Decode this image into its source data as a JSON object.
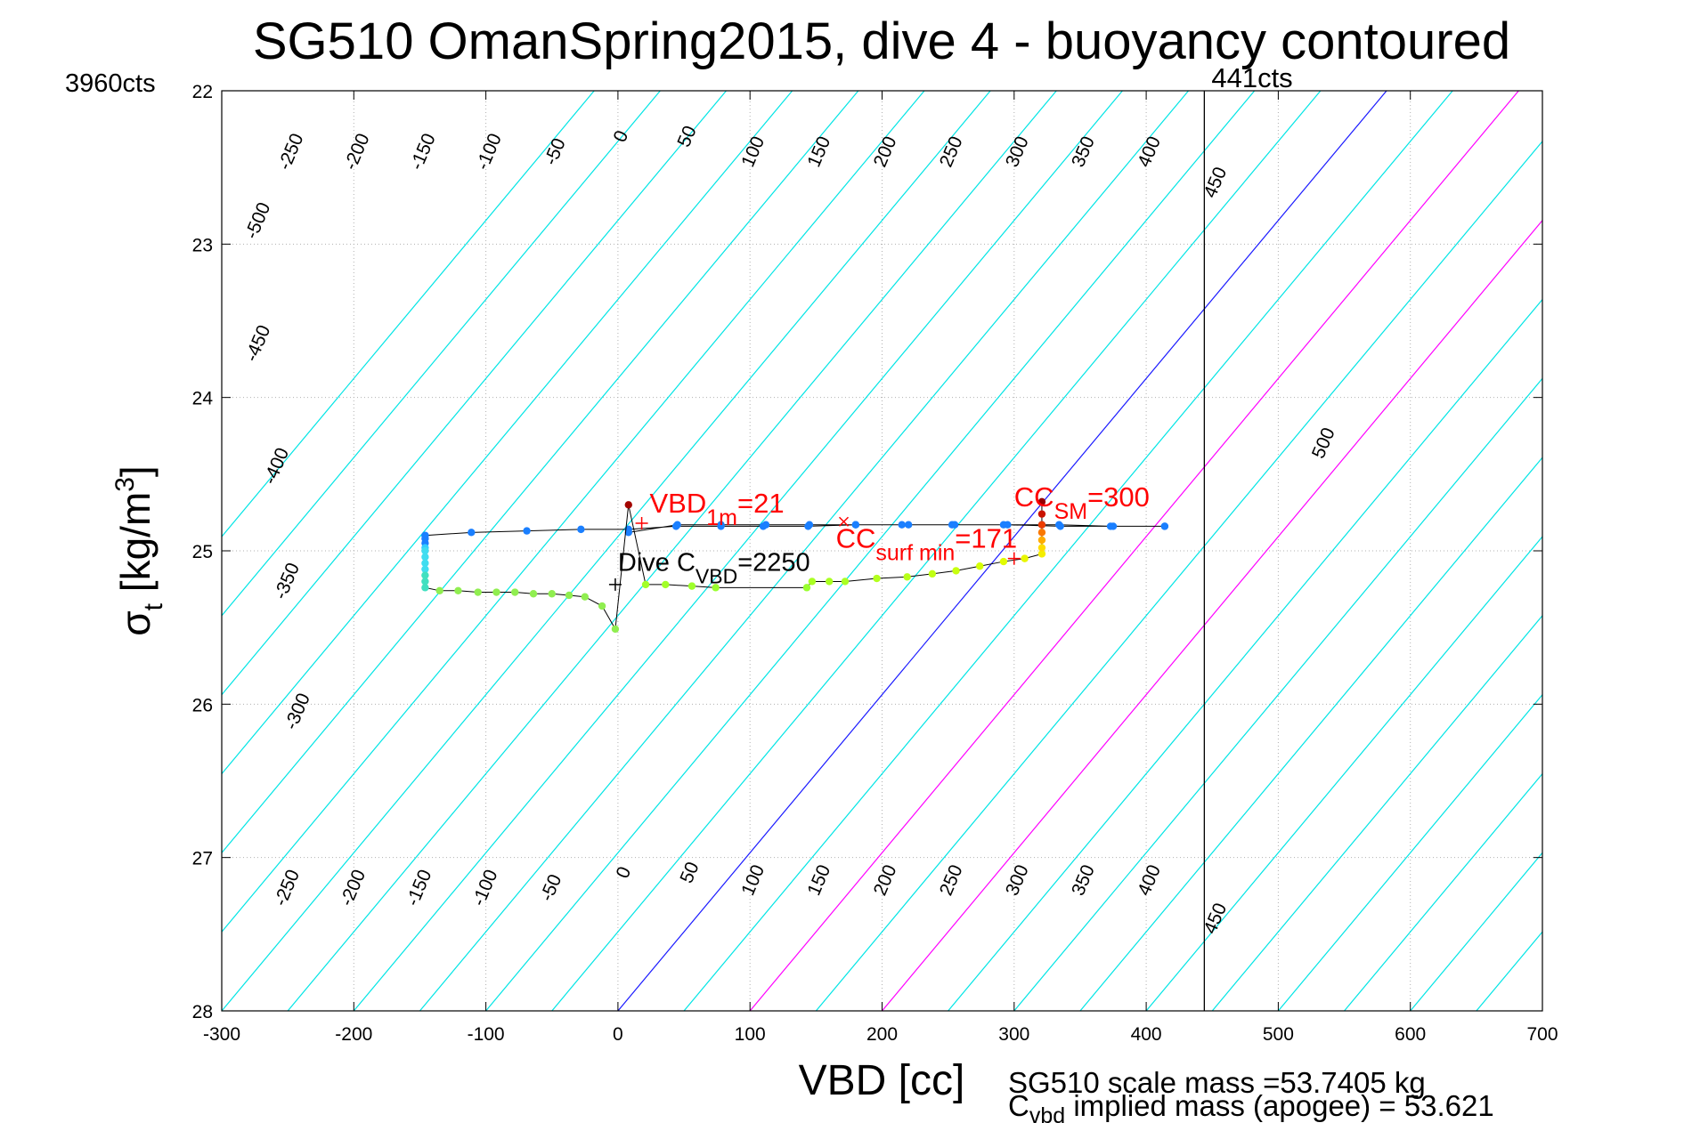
{
  "chart_data": {
    "type": "line",
    "title": "SG510 OmanSpring2015, dive 4 - buoyancy contoured",
    "xlabel": "VBD [cc]",
    "ylabel_main": "σ",
    "ylabel_sub": "t",
    "ylabel_unit_pre": " [kg/m",
    "ylabel_unit_sup": "3",
    "ylabel_unit_post": "]",
    "xlim": [
      -300,
      700
    ],
    "ylim": [
      22,
      28
    ],
    "y_reversed": true,
    "grid": true,
    "xticks": [
      -300,
      -200,
      -100,
      0,
      100,
      200,
      300,
      400,
      500,
      600,
      700
    ],
    "xtick_labels": [
      "-300",
      "-200",
      "-100",
      "0",
      "100",
      "200",
      "300",
      "400",
      "500",
      "600",
      "700"
    ],
    "yticks": [
      22,
      23,
      24,
      25,
      26,
      27,
      28
    ],
    "ytick_labels": [
      "22",
      "23",
      "24",
      "25",
      "26",
      "27",
      "28"
    ],
    "top_left_label": "3960cts",
    "vline": {
      "x": 444,
      "label": "441cts"
    },
    "contours": {
      "slope_cc_per_sigma": 97,
      "levels": [
        -600,
        -550,
        -500,
        -450,
        -400,
        -350,
        -300,
        -250,
        -200,
        -150,
        -100,
        -50,
        0,
        50,
        100,
        150,
        200,
        250,
        300,
        350,
        400,
        450,
        500,
        550,
        600,
        650,
        700,
        750
      ],
      "colors": {
        "default": "#00e5e5",
        "zero": "#1a1aff",
        "special": "#ff00ff"
      },
      "special_levels": [
        100,
        200
      ],
      "top_labels": [
        {
          "level": -250,
          "text": "-250",
          "x": -247,
          "y": 22.4
        },
        {
          "level": -200,
          "text": "-200",
          "x": -197,
          "y": 22.4
        },
        {
          "level": -150,
          "text": "-150",
          "x": -147,
          "y": 22.4
        },
        {
          "level": -100,
          "text": "-100",
          "x": -97,
          "y": 22.4
        },
        {
          "level": -50,
          "text": "-50",
          "x": -47,
          "y": 22.4
        },
        {
          "level": 0,
          "text": "0",
          "x": 3,
          "y": 22.3
        },
        {
          "level": 50,
          "text": "50",
          "x": 53,
          "y": 22.3
        },
        {
          "level": 100,
          "text": "100",
          "x": 103,
          "y": 22.4
        },
        {
          "level": 150,
          "text": "150",
          "x": 153,
          "y": 22.4
        },
        {
          "level": 200,
          "text": "200",
          "x": 203,
          "y": 22.4
        },
        {
          "level": 250,
          "text": "250",
          "x": 253,
          "y": 22.4
        },
        {
          "level": 300,
          "text": "300",
          "x": 303,
          "y": 22.4
        },
        {
          "level": 350,
          "text": "350",
          "x": 353,
          "y": 22.4
        },
        {
          "level": 400,
          "text": "400",
          "x": 403,
          "y": 22.4
        },
        {
          "level": 450,
          "text": "450",
          "x": 453,
          "y": 22.6
        }
      ],
      "left_labels": [
        {
          "level": -500,
          "text": "-500",
          "x": -272,
          "y": 22.85
        },
        {
          "level": -450,
          "text": "-450",
          "x": -272,
          "y": 23.65
        },
        {
          "level": -400,
          "text": "-400",
          "x": -258,
          "y": 24.45
        },
        {
          "level": -350,
          "text": "-350",
          "x": -250,
          "y": 25.2
        },
        {
          "level": -300,
          "text": "-300",
          "x": -242,
          "y": 26.05
        }
      ],
      "right_labels": [
        {
          "level": 500,
          "text": "500",
          "x": 535,
          "y": 24.3
        }
      ],
      "bottom_labels": [
        {
          "level": -250,
          "text": "-250",
          "x": -250,
          "y": 27.2
        },
        {
          "level": -200,
          "text": "-200",
          "x": -200,
          "y": 27.2
        },
        {
          "level": -150,
          "text": "-150",
          "x": -150,
          "y": 27.2
        },
        {
          "level": -100,
          "text": "-100",
          "x": -100,
          "y": 27.2
        },
        {
          "level": -50,
          "text": "-50",
          "x": -50,
          "y": 27.2
        },
        {
          "level": 0,
          "text": "0",
          "x": 5,
          "y": 27.1
        },
        {
          "level": 50,
          "text": "50",
          "x": 55,
          "y": 27.1
        },
        {
          "level": 100,
          "text": "100",
          "x": 103,
          "y": 27.15
        },
        {
          "level": 150,
          "text": "150",
          "x": 153,
          "y": 27.15
        },
        {
          "level": 200,
          "text": "200",
          "x": 203,
          "y": 27.15
        },
        {
          "level": 250,
          "text": "250",
          "x": 253,
          "y": 27.15
        },
        {
          "level": 300,
          "text": "300",
          "x": 303,
          "y": 27.15
        },
        {
          "level": 350,
          "text": "350",
          "x": 353,
          "y": 27.15
        },
        {
          "level": 400,
          "text": "400",
          "x": 403,
          "y": 27.15
        },
        {
          "level": 450,
          "text": "450",
          "x": 453,
          "y": 27.4
        }
      ]
    },
    "series": [
      {
        "mode": "dive",
        "points": [
          [
            8,
            24.88
          ],
          [
            45,
            24.83
          ],
          [
            78,
            24.83
          ],
          [
            112,
            24.83
          ],
          [
            145,
            24.83
          ],
          [
            180,
            24.83
          ],
          [
            215,
            24.83
          ],
          [
            253,
            24.83
          ],
          [
            292,
            24.83
          ],
          [
            321,
            24.83
          ],
          [
            334,
            24.83
          ],
          [
            373,
            24.84
          ],
          [
            414,
            24.84
          ],
          [
            414,
            24.84
          ],
          [
            375,
            24.84
          ],
          [
            335,
            24.84
          ],
          [
            295,
            24.83
          ],
          [
            255,
            24.83
          ],
          [
            220,
            24.83
          ],
          [
            180,
            24.83
          ],
          [
            144,
            24.84
          ],
          [
            110,
            24.84
          ],
          [
            78,
            24.84
          ],
          [
            44,
            24.84
          ],
          [
            8,
            24.86
          ],
          [
            -28,
            24.86
          ],
          [
            -69,
            24.87
          ],
          [
            -111,
            24.88
          ],
          [
            -146,
            24.9
          ],
          [
            -146,
            24.9
          ],
          [
            -146,
            24.92
          ],
          [
            -146,
            24.95
          ],
          [
            -146,
            24.98
          ]
        ]
      },
      {
        "mode": "climb",
        "points": [
          [
            -146,
            25.0
          ],
          [
            -146,
            25.04
          ],
          [
            -146,
            25.08
          ],
          [
            -146,
            25.12
          ],
          [
            -146,
            25.16
          ],
          [
            -146,
            25.2
          ],
          [
            -146,
            25.24
          ],
          [
            -135,
            25.26
          ],
          [
            -121,
            25.26
          ],
          [
            -106,
            25.27
          ],
          [
            -92,
            25.27
          ],
          [
            -78,
            25.27
          ],
          [
            -64,
            25.28
          ],
          [
            -50,
            25.28
          ],
          [
            -37,
            25.29
          ],
          [
            -25,
            25.3
          ],
          [
            -12,
            25.36
          ],
          [
            -2,
            25.51
          ],
          [
            8,
            24.7
          ],
          [
            21,
            25.22
          ],
          [
            36,
            25.22
          ],
          [
            56,
            25.23
          ],
          [
            74,
            25.24
          ],
          [
            143,
            25.24
          ],
          [
            147,
            25.2
          ],
          [
            160,
            25.2
          ],
          [
            172,
            25.2
          ],
          [
            196,
            25.18
          ],
          [
            219,
            25.17
          ],
          [
            238,
            25.15
          ],
          [
            256,
            25.13
          ],
          [
            274,
            25.1
          ],
          [
            292,
            25.07
          ],
          [
            308,
            25.05
          ],
          [
            321,
            25.02
          ],
          [
            321,
            24.98
          ],
          [
            321,
            24.93
          ],
          [
            321,
            24.88
          ],
          [
            321,
            24.83
          ],
          [
            321,
            24.76
          ],
          [
            321,
            24.68
          ]
        ]
      }
    ],
    "annotations": [
      {
        "name": "vbd-1m",
        "color": "#ff0000",
        "x": 24,
        "y": 24.75,
        "font_size": 31,
        "main": "VBD",
        "sub": "1m",
        "tail": "=21",
        "marker": {
          "x": 18,
          "y": 24.82,
          "symbol": "+"
        }
      },
      {
        "name": "dive-cvbd",
        "color": "#000000",
        "x": 0,
        "y": 25.13,
        "font_size": 29,
        "main": "Dive C",
        "sub": "VBD",
        "tail": "=2250",
        "marker": {
          "x": -2,
          "y": 25.22,
          "symbol": "+"
        }
      },
      {
        "name": "cc-surf-min",
        "color": "#ff0000",
        "x": 165,
        "y": 24.98,
        "font_size": 31,
        "main": "CC",
        "sub": "surf min",
        "tail": "=171",
        "marker": {
          "x": 171,
          "y": 24.81,
          "symbol": "x"
        }
      },
      {
        "name": "cc-sm",
        "color": "#ff0000",
        "x": 300,
        "y": 24.71,
        "font_size": 31,
        "main": "CC",
        "sub": "SM",
        "tail": "=300",
        "marker": {
          "x": 300,
          "y": 25.05,
          "symbol": "+"
        }
      }
    ],
    "footer": {
      "line1": "SG510 scale mass =53.7405 kg",
      "line2_main": "C",
      "line2_sub": "vbd",
      "line2_tail": " implied mass (apogee) = 53.621"
    }
  }
}
